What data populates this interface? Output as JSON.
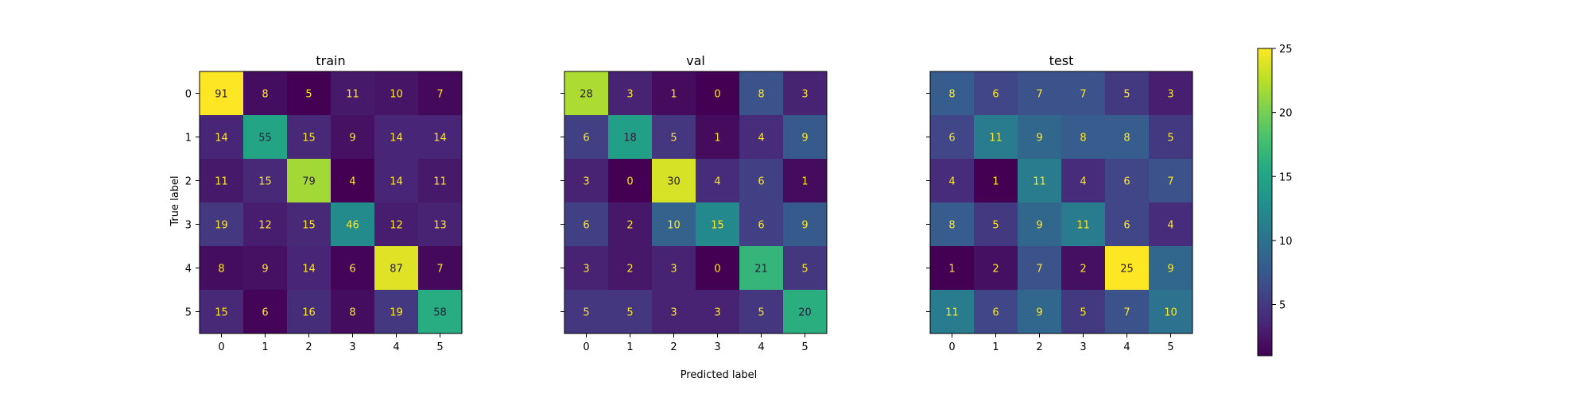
{
  "chart_data": {
    "type": "heatmap",
    "xlabel": "Predicted label",
    "ylabel": "True label",
    "categories": [
      "0",
      "1",
      "2",
      "3",
      "4",
      "5"
    ],
    "panels": [
      {
        "title": "train",
        "matrix": [
          [
            91,
            8,
            5,
            11,
            10,
            7
          ],
          [
            14,
            55,
            15,
            9,
            14,
            14
          ],
          [
            11,
            15,
            79,
            4,
            14,
            11
          ],
          [
            19,
            12,
            15,
            46,
            12,
            13
          ],
          [
            8,
            9,
            14,
            6,
            87,
            7
          ],
          [
            15,
            6,
            16,
            8,
            19,
            58
          ]
        ],
        "color_range": [
          5,
          91
        ]
      },
      {
        "title": "val",
        "matrix": [
          [
            28,
            3,
            1,
            0,
            8,
            3
          ],
          [
            6,
            18,
            5,
            1,
            4,
            9
          ],
          [
            3,
            0,
            30,
            4,
            6,
            1
          ],
          [
            6,
            2,
            10,
            15,
            6,
            9
          ],
          [
            3,
            2,
            3,
            0,
            21,
            5
          ],
          [
            5,
            5,
            3,
            3,
            5,
            20
          ]
        ],
        "color_range": [
          0,
          32
        ]
      },
      {
        "title": "test",
        "matrix": [
          [
            8,
            6,
            7,
            7,
            5,
            3
          ],
          [
            6,
            11,
            9,
            8,
            8,
            5
          ],
          [
            4,
            1,
            11,
            4,
            6,
            7
          ],
          [
            8,
            5,
            9,
            11,
            6,
            4
          ],
          [
            1,
            2,
            7,
            2,
            25,
            9
          ],
          [
            11,
            6,
            9,
            5,
            7,
            10
          ]
        ],
        "color_range": [
          1,
          25
        ]
      }
    ],
    "colorbar": {
      "range": [
        1,
        25
      ],
      "ticks": [
        "5",
        "10",
        "15",
        "20",
        "25"
      ],
      "colormap": "viridis"
    },
    "grid": false
  }
}
